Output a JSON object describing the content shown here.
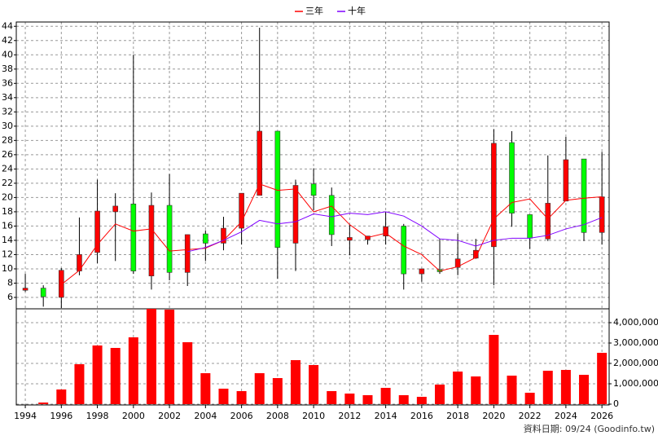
{
  "chart_data": {
    "type": "candlestick",
    "legend": "top",
    "grid": true,
    "x": [
      1994,
      1995,
      1996,
      1997,
      1998,
      1999,
      2000,
      2001,
      2002,
      2003,
      2004,
      2005,
      2006,
      2007,
      2008,
      2009,
      2010,
      2011,
      2012,
      2013,
      2014,
      2015,
      2016,
      2017,
      2018,
      2019,
      2020,
      2021,
      2022,
      2023,
      2024,
      2025,
      2026
    ],
    "open": [
      7.0,
      7.3,
      6.0,
      9.7,
      12.3,
      18.0,
      19.1,
      9.0,
      18.9,
      9.5,
      14.9,
      13.6,
      15.7,
      20.3,
      29.3,
      13.6,
      21.9,
      20.3,
      14.0,
      14.1,
      14.6,
      16.0,
      9.3,
      9.9,
      10.2,
      11.5,
      13.1,
      27.7,
      17.6,
      14.2,
      19.5,
      25.4,
      15.1
    ],
    "high": [
      9.3,
      7.7,
      10.1,
      17.2,
      22.5,
      20.6,
      40.0,
      20.7,
      23.3,
      14.8,
      15.4,
      17.3,
      20.6,
      43.8,
      29.3,
      22.5,
      24.1,
      21.4,
      16.2,
      14.6,
      18.0,
      16.3,
      10.0,
      14.2,
      14.9,
      14.2,
      29.6,
      29.3,
      17.6,
      25.9,
      28.5,
      25.4,
      26.4
    ],
    "low": [
      6.8,
      4.7,
      4.5,
      9.1,
      10.8,
      11.1,
      9.3,
      7.1,
      8.4,
      7.6,
      11.1,
      12.6,
      13.4,
      20.3,
      8.6,
      9.7,
      18.2,
      13.2,
      11.9,
      13.4,
      13.4,
      7.1,
      8.2,
      9.3,
      9.1,
      11.4,
      7.7,
      15.9,
      12.8,
      13.9,
      19.5,
      13.9,
      13.4
    ],
    "close": [
      7.3,
      6.1,
      9.8,
      12.0,
      18.1,
      18.8,
      9.7,
      18.9,
      9.5,
      14.8,
      13.6,
      15.7,
      20.6,
      29.3,
      13.0,
      21.7,
      20.3,
      14.8,
      14.4,
      14.6,
      15.9,
      9.3,
      10.0,
      9.6,
      11.4,
      12.6,
      27.6,
      17.8,
      14.3,
      19.2,
      25.3,
      15.1,
      20.1
    ],
    "up_color": "#ff0000",
    "down_color": "#00ff00",
    "series": [
      {
        "name": "三年",
        "color": "#ff0000",
        "values": [
          null,
          null,
          7.8,
          9.8,
          13.4,
          16.3,
          15.3,
          15.6,
          12.5,
          12.7,
          12.9,
          14.0,
          16.6,
          21.9,
          21.0,
          21.2,
          18.0,
          18.8,
          16.2,
          14.4,
          15.0,
          13.2,
          12.0,
          9.7,
          10.3,
          11.6,
          17.0,
          19.3,
          19.8,
          17.0,
          19.6,
          19.9,
          20.1
        ]
      },
      {
        "name": "十年",
        "color": "#8000ff",
        "values": [
          null,
          null,
          null,
          null,
          null,
          null,
          null,
          null,
          null,
          12.4,
          13.0,
          14.0,
          15.2,
          16.8,
          16.3,
          16.6,
          17.7,
          17.3,
          17.8,
          17.6,
          18.0,
          17.4,
          16.0,
          14.2,
          14.0,
          13.2,
          14.0,
          14.3,
          14.3,
          14.7,
          15.6,
          16.2,
          17.2
        ]
      }
    ],
    "volume": [
      0,
      80000,
      720000,
      1960000,
      2880000,
      2760000,
      3280000,
      4680000,
      4640000,
      3040000,
      1520000,
      760000,
      640000,
      1520000,
      1280000,
      2160000,
      1920000,
      640000,
      520000,
      440000,
      800000,
      440000,
      360000,
      960000,
      1600000,
      1360000,
      3400000,
      1400000,
      560000,
      1640000,
      1680000,
      1440000,
      2520000
    ],
    "volume_color": "#ff0000",
    "xlim": [
      1993.5,
      2026.4
    ],
    "xticks": [
      1994,
      1996,
      1998,
      2000,
      2002,
      2004,
      2006,
      2008,
      2010,
      2012,
      2014,
      2016,
      2018,
      2020,
      2022,
      2024,
      2026
    ],
    "ylim": [
      4.4,
      44.6
    ],
    "yticks": [
      6,
      8,
      10,
      12,
      14,
      16,
      18,
      20,
      22,
      24,
      26,
      28,
      30,
      32,
      34,
      36,
      38,
      40,
      42,
      44
    ],
    "volume_ylim": [
      -40000,
      4680000
    ],
    "volume_yticks": [
      0,
      {
        "value": 1000000,
        "label": "1,000,000"
      },
      {
        "value": 2000000,
        "label": "2,000,000"
      },
      {
        "value": 3000000,
        "label": "3,000,000"
      },
      {
        "value": 4000000,
        "label": "4,000,000"
      }
    ],
    "footer": "資料日期: 09/24 (Goodinfo.tw)"
  }
}
